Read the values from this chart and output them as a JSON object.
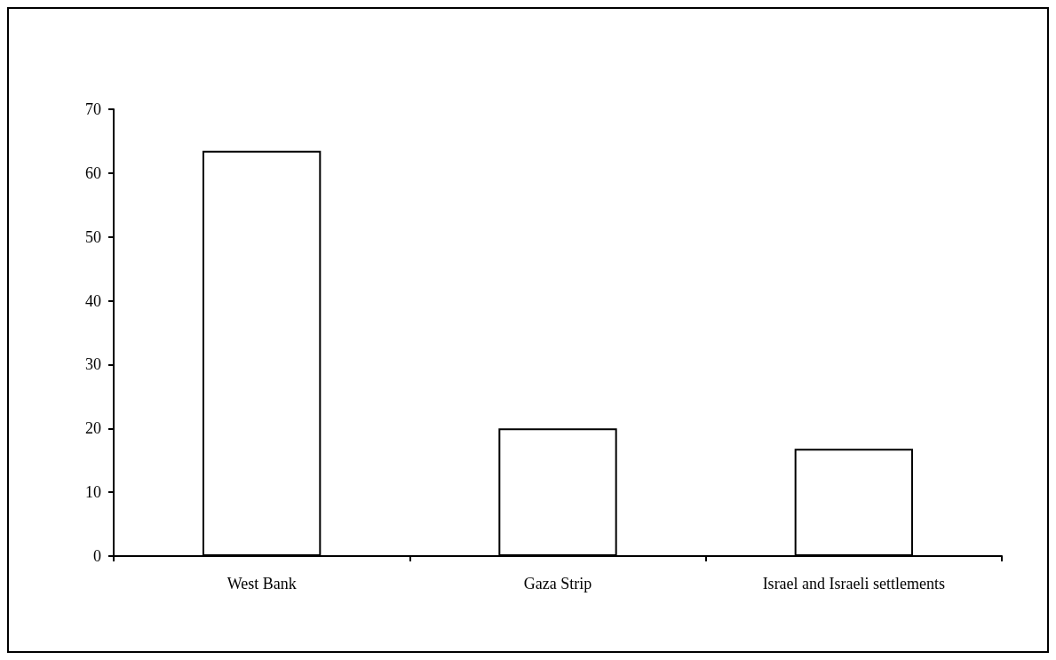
{
  "chart_data": {
    "type": "bar",
    "categories": [
      "West Bank",
      "Gaza Strip",
      "Israel and Israeli settlements"
    ],
    "values": [
      63.5,
      20,
      16.8
    ],
    "color": "#ffffff",
    "ylim": [
      0,
      70
    ],
    "yticks": [
      0,
      10,
      20,
      30,
      40,
      50,
      60,
      70
    ]
  }
}
